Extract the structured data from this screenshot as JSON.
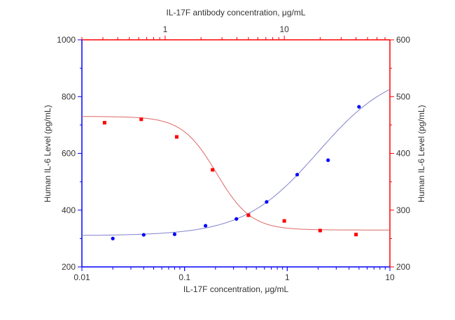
{
  "chart_data": {
    "type": "scatter",
    "xlabel": "IL-17F concentration, μg/mL",
    "x2label": "IL-17F antibody concentration, μg/mL",
    "ylabel": "Human IL-6 Level (pg/mL)",
    "y2label": "Human IL-6 Level (pg/mL)",
    "xscale": "log",
    "xlim": [
      0.01,
      10
    ],
    "xticks": [
      "0.01",
      "0.1",
      "1",
      "10"
    ],
    "x2scale": "log",
    "x2lim": [
      0.2,
      77
    ],
    "x2ticks": [
      "1",
      "10"
    ],
    "ylim": [
      200,
      1000
    ],
    "yticks": [
      "200",
      "400",
      "600",
      "800",
      "1000"
    ],
    "y2lim": [
      200,
      600
    ],
    "y2ticks": [
      "200",
      "300",
      "400",
      "500",
      "600"
    ],
    "grid": false,
    "series": [
      {
        "color": "#0000ff",
        "axis": "bottom-left",
        "x": [
          0.02,
          0.04,
          0.08,
          0.16,
          0.32,
          0.63,
          1.25,
          2.5,
          5
        ],
        "y": [
          300,
          313,
          315,
          345,
          369,
          429,
          525,
          576,
          764
        ],
        "fit": {
          "bottom": 310,
          "top": 900,
          "ec50": 2,
          "hill": 1.2
        }
      },
      {
        "color": "#ff0000",
        "axis": "top-right",
        "x": [
          0.31,
          0.63,
          1.25,
          2.5,
          5,
          10,
          20,
          40
        ],
        "y": [
          454,
          460,
          429,
          371,
          291,
          281,
          264,
          257
        ],
        "fit": {
          "bottom": 265,
          "top": 465,
          "ec50": 2.7,
          "hill": 3
        }
      }
    ],
    "colors": {
      "left_axis": "#0000ff",
      "right_axis": "#ff0000",
      "blue_fit": "#8080cc",
      "red_fit": "#dd6666"
    }
  }
}
